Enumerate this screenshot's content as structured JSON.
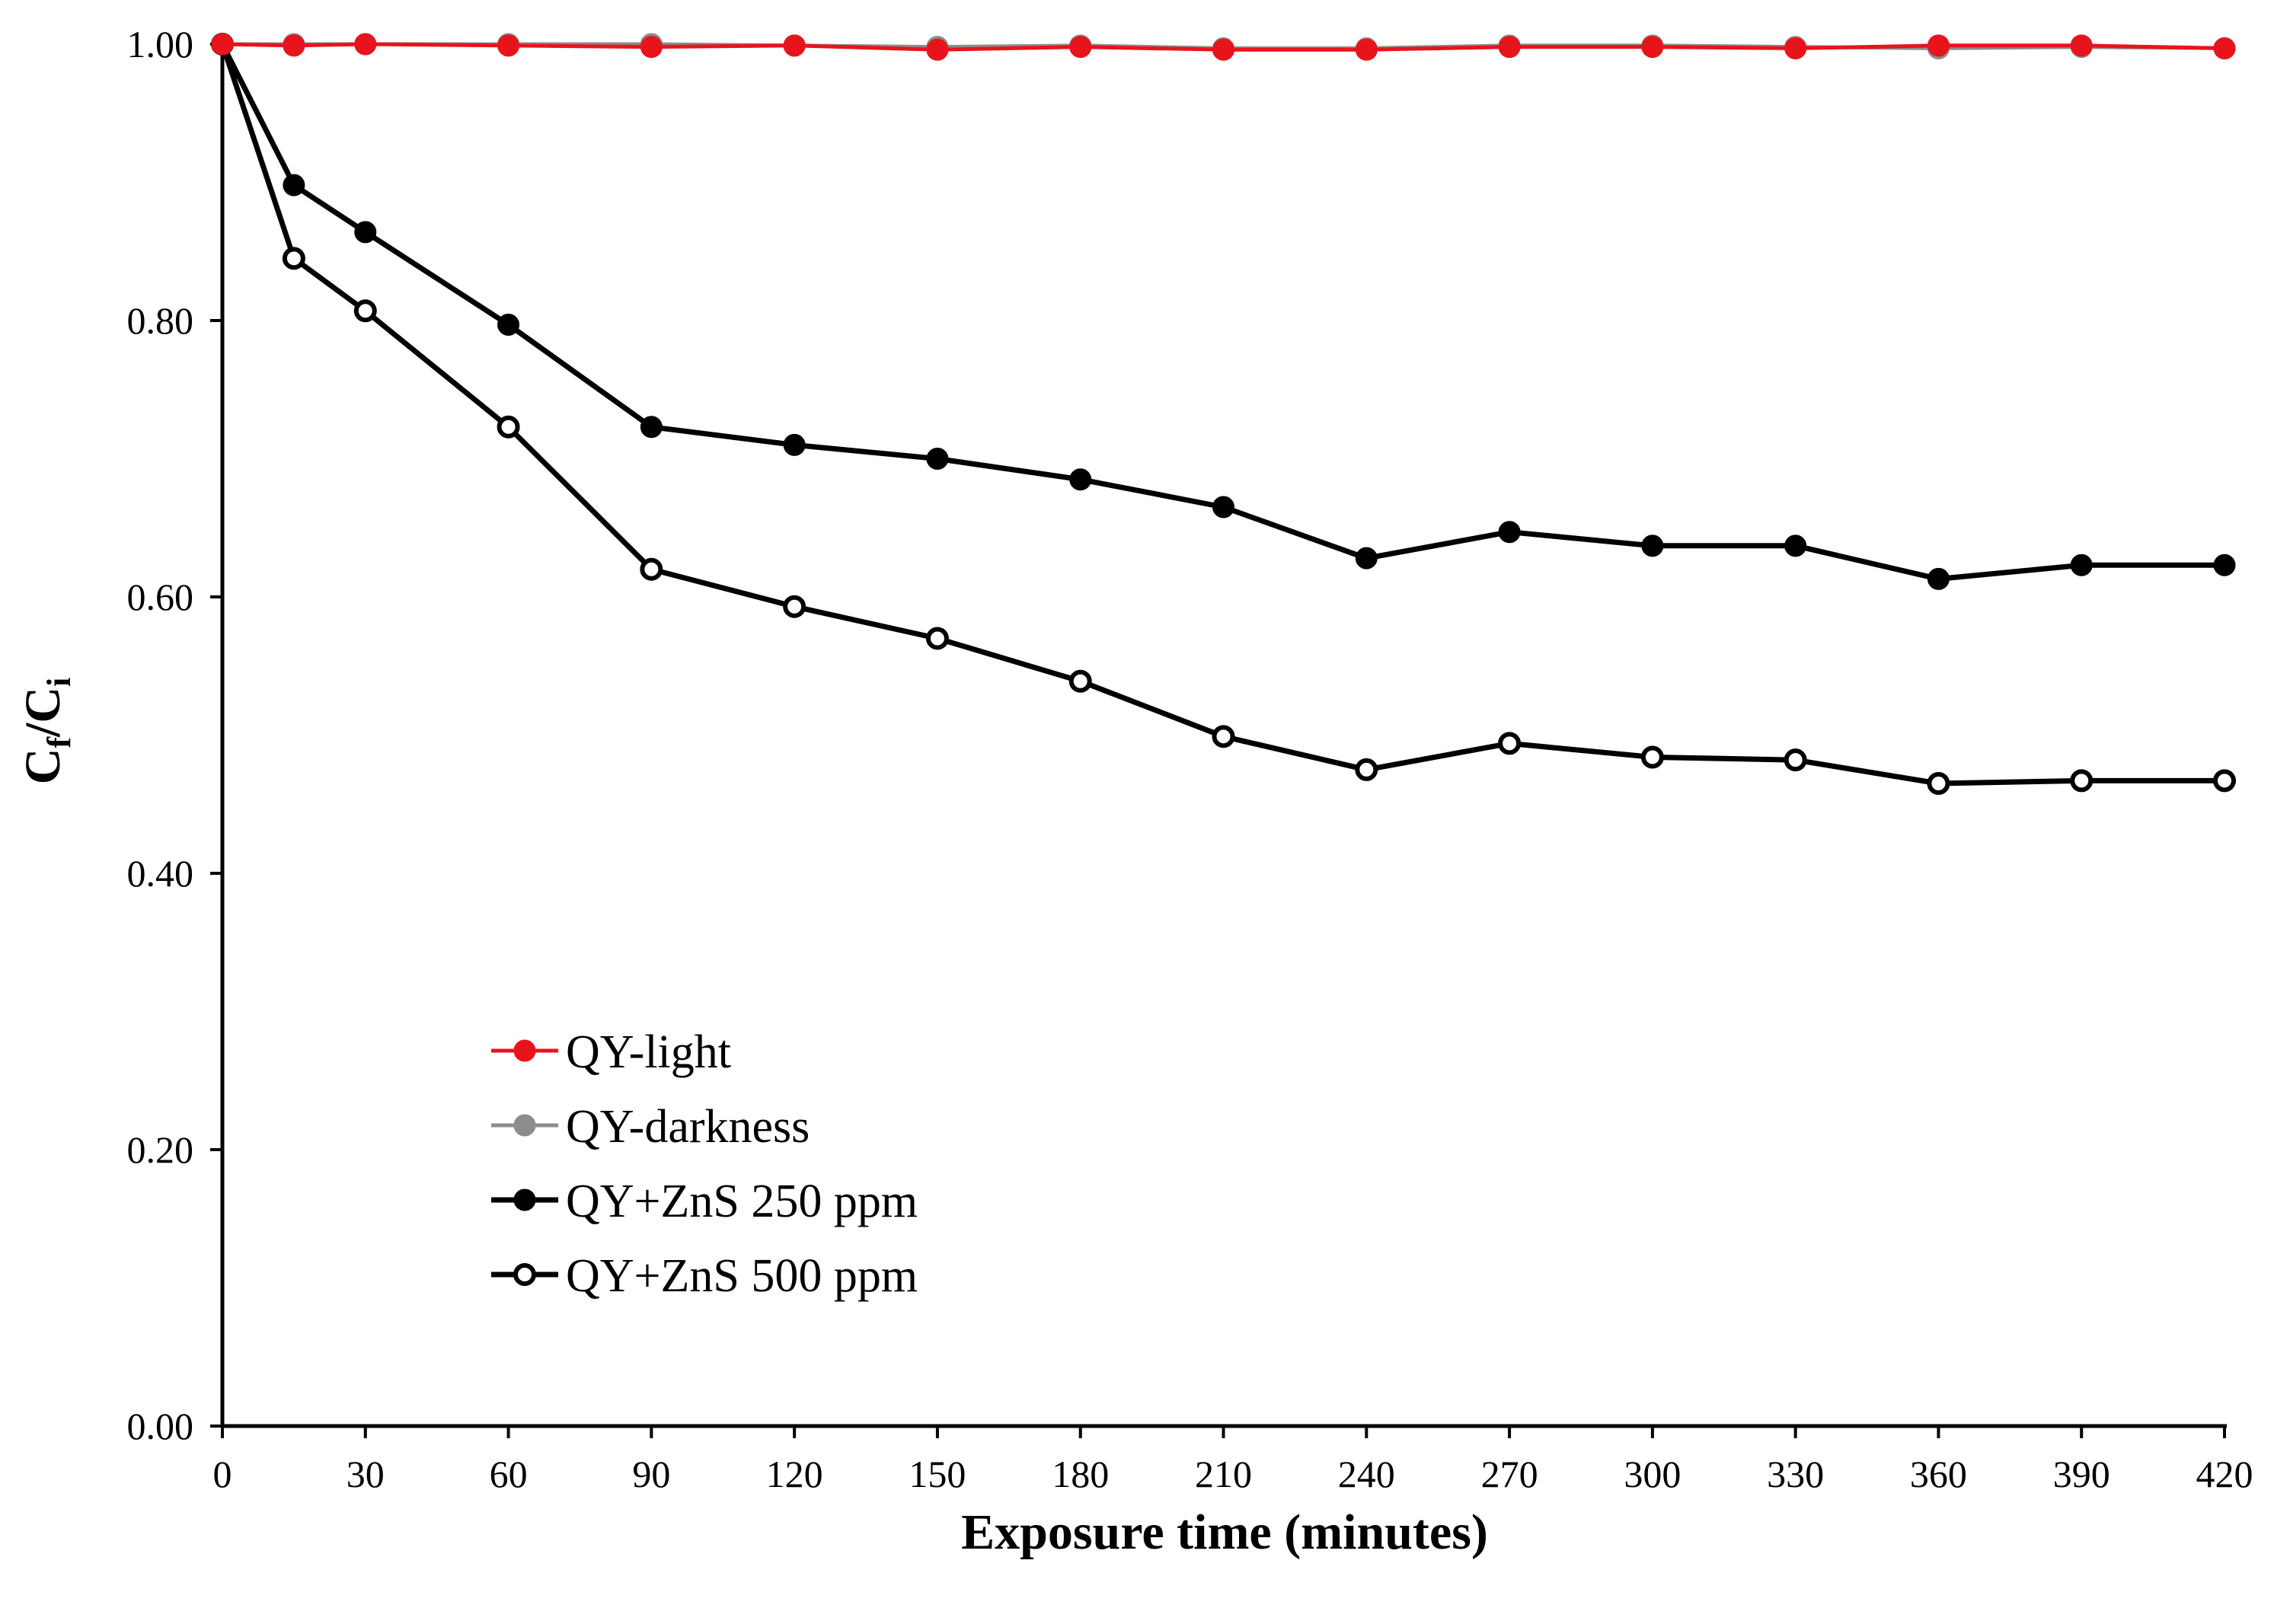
{
  "chart_data": {
    "type": "line",
    "xlabel": "Exposure time (minutes)",
    "ylabel": {
      "main": "C",
      "sub1": "f",
      "sep": "/C",
      "sub2": "i"
    },
    "xlim": [
      0,
      420
    ],
    "ylim": [
      0,
      1
    ],
    "x_ticks": [
      "0",
      "30",
      "60",
      "90",
      "120",
      "150",
      "180",
      "210",
      "240",
      "270",
      "300",
      "330",
      "360",
      "390",
      "420"
    ],
    "y_ticks": [
      "0.00",
      "0.20",
      "0.40",
      "0.60",
      "0.80",
      "1.00"
    ],
    "grid": false,
    "legend_position": "lower-left",
    "x": [
      0,
      15,
      30,
      60,
      90,
      120,
      150,
      180,
      210,
      240,
      270,
      300,
      330,
      360,
      390,
      420
    ],
    "series": [
      {
        "name": "QY-light",
        "color": "#e8141c",
        "marker": "filled-circle",
        "values": [
          1.0,
          0.999,
          1.0,
          0.999,
          0.998,
          0.999,
          0.996,
          0.998,
          0.996,
          0.996,
          0.998,
          0.998,
          0.997,
          0.999,
          0.999,
          0.997
        ]
      },
      {
        "name": "QY-darkness",
        "color": "#8c8c8c",
        "marker": "filled-circle",
        "values": [
          1.0,
          1.0,
          1.0,
          1.0,
          1.0,
          0.999,
          0.998,
          0.999,
          0.997,
          0.997,
          0.999,
          0.999,
          0.998,
          0.997,
          0.998,
          0.997
        ]
      },
      {
        "name": "QY+ZnS 250 ppm",
        "color": "#000000",
        "marker": "filled-circle",
        "values": [
          1.0,
          0.898,
          0.864,
          0.797,
          0.723,
          0.71,
          0.7,
          0.685,
          0.665,
          0.628,
          0.647,
          0.637,
          0.637,
          0.613,
          0.623,
          0.623
        ]
      },
      {
        "name": "QY+ZnS 500 ppm",
        "color": "#000000",
        "marker": "open-circle",
        "values": [
          1.0,
          0.845,
          0.807,
          0.723,
          0.62,
          0.593,
          0.57,
          0.539,
          0.499,
          0.475,
          0.494,
          0.484,
          0.482,
          0.465,
          0.467,
          0.467
        ]
      }
    ]
  }
}
